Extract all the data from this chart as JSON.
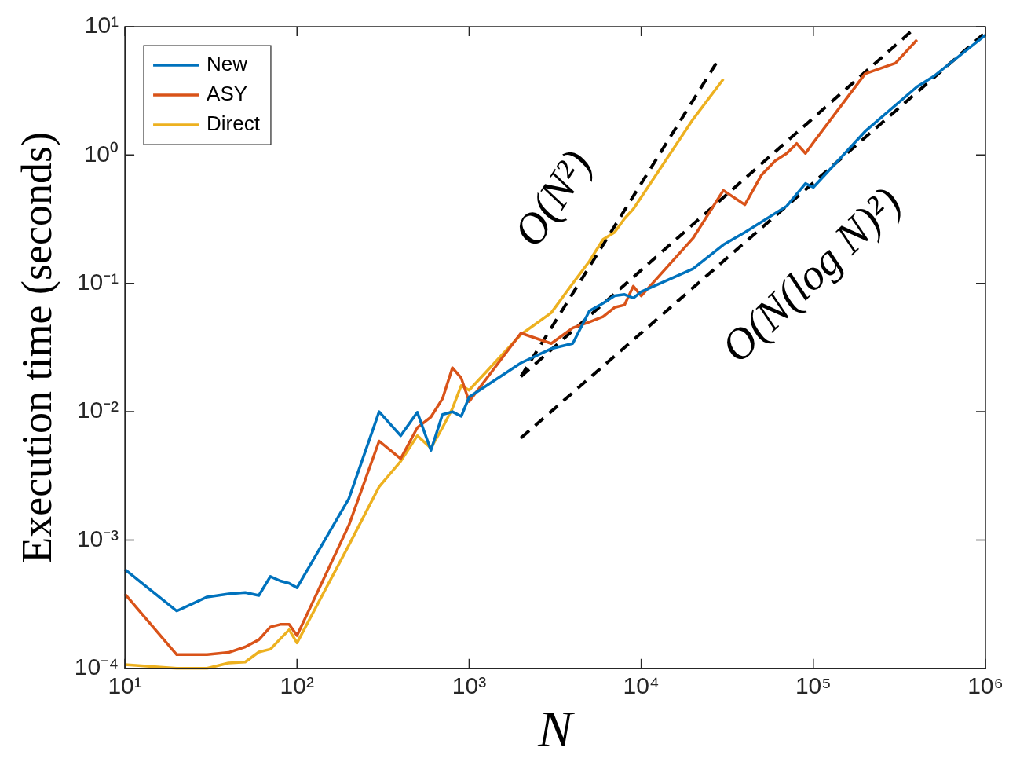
{
  "chart_data": {
    "type": "line",
    "xlabel": "N",
    "ylabel": "Execution time (seconds)",
    "log": "xy",
    "grid": false,
    "legend": "top left",
    "marker": "none",
    "xlim": [
      10,
      1000000
    ],
    "ylim": [
      0.0001,
      10
    ],
    "xticks": [
      {
        "value": 10,
        "label": "10¹"
      },
      {
        "value": 100,
        "label": "10²"
      },
      {
        "value": 1000,
        "label": "10³"
      },
      {
        "value": 10000,
        "label": "10⁴"
      },
      {
        "value": 100000,
        "label": "10⁵"
      },
      {
        "value": 1000000,
        "label": "10⁶"
      }
    ],
    "yticks": [
      {
        "value": 0.0001,
        "label": "10⁻⁴"
      },
      {
        "value": 0.001,
        "label": "10⁻³"
      },
      {
        "value": 0.01,
        "label": "10⁻²"
      },
      {
        "value": 0.1,
        "label": "10⁻¹"
      },
      {
        "value": 1,
        "label": "10⁰"
      },
      {
        "value": 10,
        "label": "10¹"
      }
    ],
    "series": [
      {
        "name": "New",
        "color": "#0072bd",
        "x": [
          10,
          20,
          30,
          40,
          50,
          60,
          70,
          80,
          90,
          100,
          200,
          300,
          400,
          500,
          600,
          700,
          800,
          900,
          1000,
          2000,
          3000,
          4000,
          5000,
          6000,
          7000,
          8000,
          9000,
          10000,
          20000,
          30000,
          40000,
          70000,
          90000,
          100000,
          200000,
          400000,
          500000,
          1000000
        ],
        "values": [
          0.00059,
          0.00028,
          0.00036,
          0.00038,
          0.00039,
          0.00037,
          0.00052,
          0.00048,
          0.00046,
          0.000425,
          0.0021,
          0.01,
          0.0065,
          0.0099,
          0.005,
          0.0095,
          0.01,
          0.0092,
          0.013,
          0.024,
          0.031,
          0.034,
          0.061,
          0.07,
          0.08,
          0.082,
          0.077,
          0.086,
          0.13,
          0.2,
          0.25,
          0.4,
          0.6,
          0.56,
          1.53,
          3.4,
          4.1,
          8.6
        ]
      },
      {
        "name": "ASY",
        "color": "#d95319",
        "x": [
          10,
          20,
          30,
          40,
          50,
          60,
          70,
          80,
          90,
          100,
          200,
          300,
          400,
          500,
          600,
          700,
          800,
          900,
          1000,
          2000,
          3000,
          4000,
          5000,
          6000,
          7000,
          8000,
          9000,
          10000,
          20000,
          30000,
          40000,
          50000,
          60000,
          70000,
          80000,
          90000,
          100000,
          200000,
          300000,
          400000
        ],
        "values": [
          0.00038,
          0.000128,
          0.000128,
          0.000133,
          0.000147,
          0.000167,
          0.00021,
          0.00022,
          0.00022,
          0.00018,
          0.0013,
          0.0059,
          0.0043,
          0.0075,
          0.0091,
          0.0126,
          0.022,
          0.0183,
          0.012,
          0.041,
          0.034,
          0.045,
          0.05,
          0.055,
          0.065,
          0.068,
          0.095,
          0.08,
          0.225,
          0.53,
          0.41,
          0.7,
          0.9,
          1.03,
          1.23,
          1.03,
          1.25,
          4.3,
          5.2,
          7.9
        ]
      },
      {
        "name": "Direct",
        "color": "#edb120",
        "x": [
          10,
          20,
          30,
          40,
          50,
          60,
          70,
          80,
          90,
          100,
          200,
          300,
          400,
          500,
          600,
          700,
          800,
          900,
          1000,
          2000,
          3000,
          4000,
          5000,
          6000,
          7000,
          8000,
          9000,
          10000,
          20000,
          30000
        ],
        "values": [
          0.000107,
          0.0001,
          0.0001,
          0.00011,
          0.000112,
          0.000134,
          0.000141,
          0.00017,
          0.0002,
          0.000158,
          0.00091,
          0.0026,
          0.0041,
          0.0065,
          0.0052,
          0.0075,
          0.0106,
          0.016,
          0.0147,
          0.04,
          0.059,
          0.1,
          0.149,
          0.22,
          0.25,
          0.32,
          0.38,
          0.47,
          1.9,
          3.9
        ]
      },
      {
        "type": "line",
        "color": "#000000",
        "line_style": "dashed",
        "x": [
          2000,
          28000
        ],
        "values": [
          0.0188,
          5.5
        ]
      },
      {
        "type": "line",
        "color": "#000000",
        "line_style": "dashed",
        "x": [
          2000,
          374000
        ],
        "values": [
          0.0188,
          9.3
        ]
      },
      {
        "type": "line",
        "color": "#000000",
        "line_style": "dashed",
        "x": [
          2000,
          970000
        ],
        "values": [
          0.00625,
          8.7
        ]
      }
    ],
    "annotations": [
      "O(N²)",
      "O(N(log N)²)"
    ]
  }
}
